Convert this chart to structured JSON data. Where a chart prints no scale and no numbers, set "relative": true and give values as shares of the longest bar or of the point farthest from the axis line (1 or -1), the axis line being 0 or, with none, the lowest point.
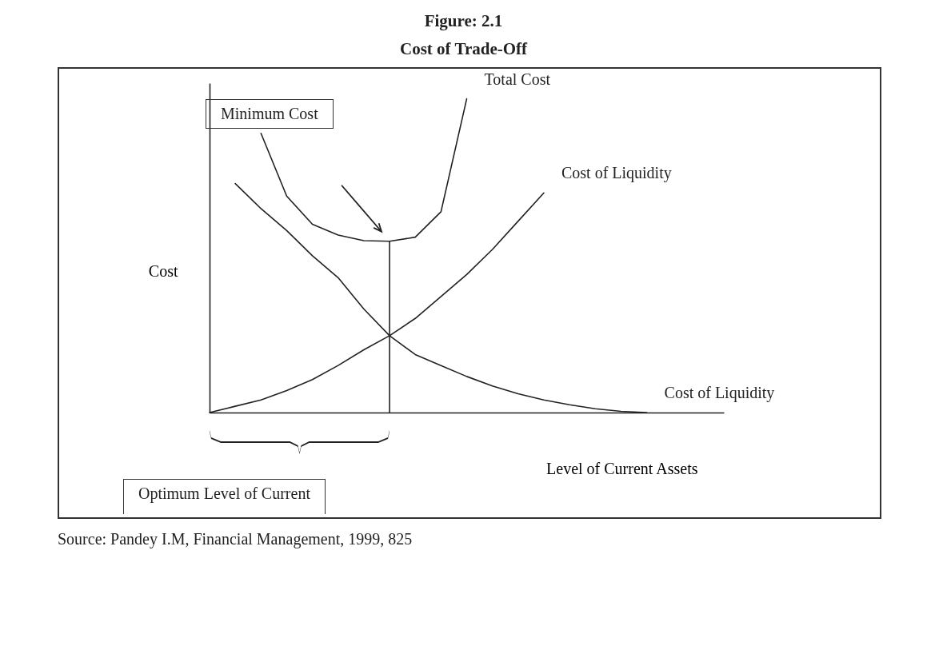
{
  "chart_data": {
    "type": "line",
    "title": "Figure: 2.1",
    "subtitle": "Cost of Trade-Off",
    "xlabel": "Level of Current Assets",
    "ylabel": "Cost",
    "relative": true,
    "categories": [
      null,
      null,
      null,
      null,
      null,
      null,
      null,
      null,
      null,
      null,
      null,
      null,
      null,
      null,
      null,
      null,
      null,
      null,
      null,
      null,
      null
    ],
    "series": [
      {
        "name": "Total Cost",
        "color": "#222222",
        "values": [
          null,
          null,
          0.89,
          0.69,
          0.6,
          0.566,
          0.548,
          0.546,
          0.559,
          0.64,
          1.0,
          null,
          null,
          null,
          null,
          null,
          null,
          null,
          null,
          null,
          null
        ]
      },
      {
        "name": "Cost of Liquidity",
        "color": "#222222",
        "values": [
          0,
          0.02,
          0.04,
          0.07,
          0.105,
          0.15,
          0.2,
          0.245,
          0.3,
          0.37,
          0.44,
          0.52,
          0.61,
          0.7,
          null,
          null,
          null,
          null,
          null,
          null,
          null
        ]
      },
      {
        "name": "Cost of Liquidity",
        "color": "#222222",
        "values": [
          null,
          0.73,
          0.65,
          0.58,
          0.5,
          0.43,
          0.33,
          0.245,
          0.185,
          0.15,
          0.115,
          0.085,
          0.06,
          0.04,
          0.025,
          0.012,
          0.004,
          0,
          null,
          null,
          null
        ]
      }
    ],
    "annotations": [
      "Minimum Cost",
      "Optimum Level of Current",
      "Source: Pandey I.M, Financial Management, 1999, 825"
    ]
  }
}
